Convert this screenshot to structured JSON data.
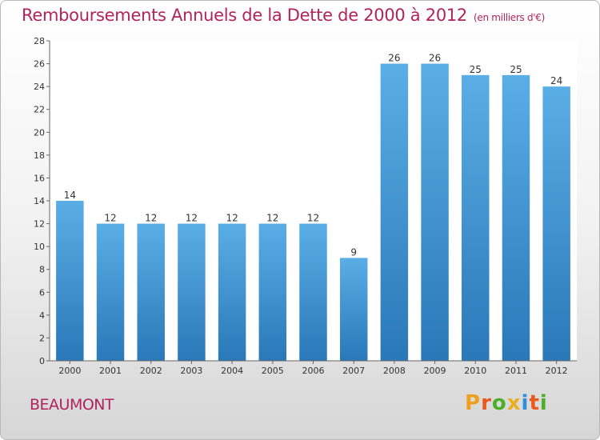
{
  "header": {
    "title": "Remboursements Annuels de la Dette de 2000 à 2012",
    "unit": "(en milliers d'€)"
  },
  "footer": {
    "city": "BEAUMONT",
    "logo": "Proxiti"
  },
  "colors": {
    "title": "#b0245a",
    "bar_top": "#5aaee6",
    "bar_bottom": "#2a78b8",
    "logo_letters": [
      "#f0a020",
      "#e85a1e",
      "#4caf2a",
      "#e8b020",
      "#2e8fd8",
      "#e85a1e",
      "#4caf2a"
    ]
  },
  "chart_data": {
    "type": "bar",
    "categories": [
      "2000",
      "2001",
      "2002",
      "2003",
      "2004",
      "2005",
      "2006",
      "2007",
      "2008",
      "2009",
      "2010",
      "2011",
      "2012"
    ],
    "values": [
      14,
      12,
      12,
      12,
      12,
      12,
      12,
      9,
      26,
      26,
      25,
      25,
      24
    ],
    "ylim": [
      0,
      28
    ],
    "yticks": [
      0,
      2,
      4,
      6,
      8,
      10,
      12,
      14,
      16,
      18,
      20,
      22,
      24,
      26,
      28
    ],
    "grid": false,
    "data_labels": true
  }
}
